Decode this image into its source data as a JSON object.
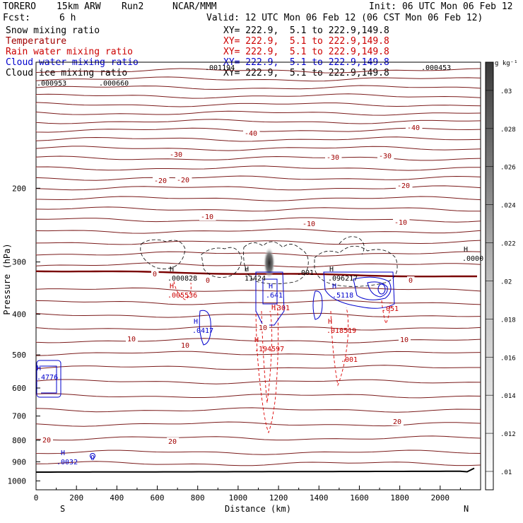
{
  "header": {
    "model": "TORERO",
    "resolution": "15km ARW",
    "run": "Run2",
    "org": "NCAR/MMM",
    "init": "Init: 06 UTC Mon 06 Feb 12",
    "fcst_label": "Fcst:",
    "fcst_value": "6 h",
    "valid": "Valid: 12 UTC Mon 06 Feb 12 (06 CST Mon 06 Feb 12)"
  },
  "legend": [
    {
      "name": "Snow mixing ratio",
      "xy": "XY= 222.9,  5.1 to 222.9,149.8",
      "color": "#000000",
      "xycolor": "#000000"
    },
    {
      "name": "Temperature",
      "xy": "XY= 222.9,  5.1 to 222.9,149.8",
      "color": "#a00000",
      "xycolor": "#cc0000"
    },
    {
      "name": "Rain water mixing ratio",
      "xy": "XY= 222.9,  5.1 to 222.9,149.8",
      "color": "#cc0000",
      "xycolor": "#cc0000"
    },
    {
      "name": "Cloud water mixing ratio",
      "xy": "XY= 222.9,  5.1 to 222.9,149.8",
      "color": "#0000cc",
      "xycolor": "#0000cc"
    },
    {
      "name": "Cloud ice mixing ratio",
      "xy": "XY= 222.9,  5.1 to 222.9,149.8",
      "color": "#000000",
      "xycolor": "#000000"
    }
  ],
  "chart_data": {
    "type": "cross-section contour",
    "xlabel": "Distance (km)",
    "ylabel": "Pressure (hPa)",
    "xlim": [
      0,
      2200
    ],
    "ylim": [
      1050,
      100
    ],
    "x_ticks": [
      "0",
      "200",
      "400",
      "600",
      "800",
      "1000",
      "1200",
      "1400",
      "1600",
      "1800",
      "2000"
    ],
    "y_ticks": [
      "200",
      "300",
      "400",
      "500",
      "600",
      "700",
      "800",
      "900",
      "1000"
    ],
    "x_end_labels": {
      "left": "S",
      "right": "N"
    },
    "colorbar": {
      "unit": "g kg⁻¹",
      "ticks": [
        ".01",
        ".012",
        ".014",
        ".016",
        ".018",
        ".02",
        ".022",
        ".024",
        ".026",
        ".028",
        ".03"
      ]
    },
    "temperature_labels": [
      "-40",
      "-40",
      "-30",
      "-30",
      "-30",
      "-20",
      "-20",
      "-20",
      "-10",
      "-10",
      "-10",
      "0",
      "0",
      "0",
      "10",
      "10",
      "10",
      "10",
      "20",
      "20",
      "20"
    ],
    "annotations": [
      {
        "text": ".001194",
        "color": "#000000"
      },
      {
        "text": ".000453",
        "color": "#000000"
      },
      {
        "text": ".000953",
        "color": "#000000"
      },
      {
        "text": ".000660",
        "color": "#000000"
      },
      {
        "text": ".000828",
        "color": "#000000"
      },
      {
        "text": ".005536",
        "color": "#cc0000"
      },
      {
        "text": "11424",
        "color": "#000000"
      },
      {
        "text": ".001",
        "color": "#000000"
      },
      {
        "text": ".096217",
        "color": "#000000"
      },
      {
        "text": ".641",
        "color": "#0000cc"
      },
      {
        "text": ".5118",
        "color": "#0000cc"
      },
      {
        "text": ".301",
        "color": "#cc0000"
      },
      {
        "text": ".051",
        "color": "#cc0000"
      },
      {
        "text": ".0417",
        "color": "#0000cc"
      },
      {
        "text": ".018519",
        "color": "#cc0000"
      },
      {
        "text": ".194597",
        "color": "#cc0000"
      },
      {
        "text": ".001",
        "color": "#cc0000"
      },
      {
        "text": ".4776",
        "color": "#0000cc"
      },
      {
        "text": ".0032",
        "color": "#0000cc"
      },
      {
        "text": "O",
        "color": "#0000cc"
      },
      {
        "text": ".0000",
        "color": "#000000"
      }
    ],
    "highs": [
      {
        "color": "#000000"
      },
      {
        "color": "#cc0000"
      },
      {
        "color": "#000000"
      },
      {
        "color": "#0000cc"
      },
      {
        "color": "#000000"
      },
      {
        "color": "#0000cc"
      },
      {
        "color": "#cc0000"
      },
      {
        "color": "#cc0000"
      },
      {
        "color": "#0000cc"
      },
      {
        "color": "#cc0000"
      },
      {
        "color": "#0000cc"
      },
      {
        "color": "#0000cc"
      },
      {
        "color": "#000000"
      }
    ],
    "high_symbol": "H"
  }
}
